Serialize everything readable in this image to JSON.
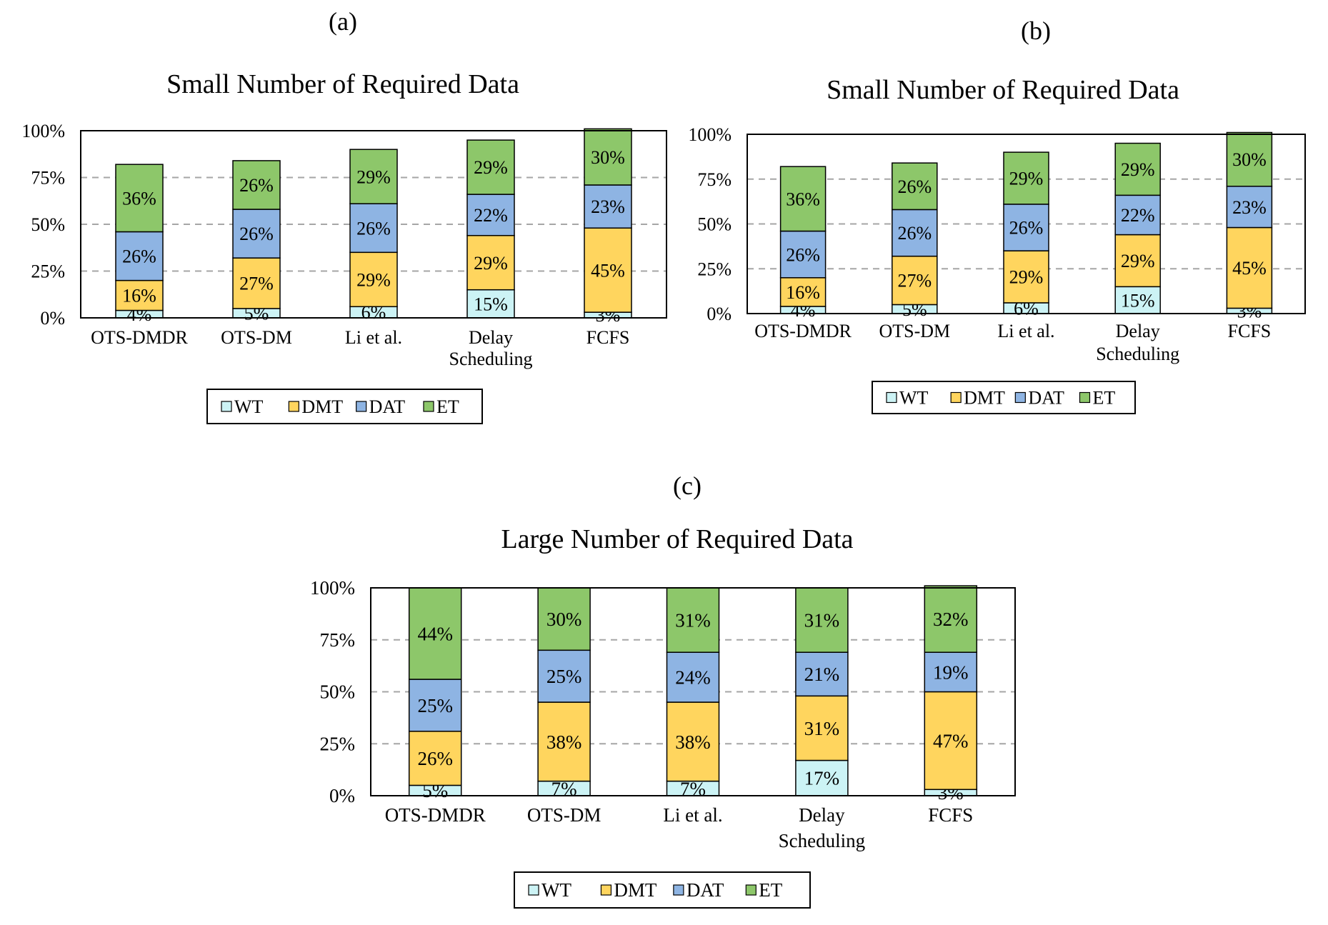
{
  "colors": {
    "WT": "#ccf3f5",
    "DMT": "#ffd55e",
    "DAT": "#8eb4e3",
    "ET": "#8dc76a",
    "grid": "#a6a6a6",
    "axis": "#000000"
  },
  "chart_data": [
    {
      "type": "bar",
      "stacked": true,
      "panel_label": "(a)",
      "title": "Small Number of Required Data",
      "categories": [
        "OTS-DMDR",
        "OTS-DM",
        "Li et al.",
        "Delay Scheduling",
        "FCFS"
      ],
      "category_lines": [
        [
          "OTS-DMDR"
        ],
        [
          "OTS-DM"
        ],
        [
          "Li et al."
        ],
        [
          "Delay",
          "Scheduling"
        ],
        [
          "FCFS"
        ]
      ],
      "series": [
        {
          "name": "WT",
          "values": [
            4,
            5,
            6,
            15,
            3
          ],
          "labels": [
            "4%",
            "5%",
            "6%",
            "15%",
            "3%"
          ]
        },
        {
          "name": "DMT",
          "values": [
            16,
            27,
            29,
            29,
            45
          ],
          "labels": [
            "16%",
            "27%",
            "29%",
            "29%",
            "45%"
          ]
        },
        {
          "name": "DAT",
          "values": [
            26,
            26,
            26,
            22,
            23
          ],
          "labels": [
            "26%",
            "26%",
            "26%",
            "22%",
            "23%"
          ]
        },
        {
          "name": "ET",
          "values": [
            36,
            26,
            29,
            29,
            30
          ],
          "labels": [
            "36%",
            "26%",
            "29%",
            "29%",
            "30%"
          ]
        }
      ],
      "yticks": [
        "0%",
        "25%",
        "50%",
        "75%",
        "100%"
      ],
      "ylim": [
        0,
        100
      ],
      "grid": true,
      "legend": [
        "WT",
        "DMT",
        "DAT",
        "ET"
      ],
      "legend_position": "bottom"
    },
    {
      "type": "bar",
      "stacked": true,
      "panel_label": "(b)",
      "title": "Small Number of Required Data",
      "categories": [
        "OTS-DMDR",
        "OTS-DM",
        "Li et al.",
        "Delay Scheduling",
        "FCFS"
      ],
      "category_lines": [
        [
          "OTS-DMDR"
        ],
        [
          "OTS-DM"
        ],
        [
          "Li et al."
        ],
        [
          "Delay",
          "Scheduling"
        ],
        [
          "FCFS"
        ]
      ],
      "series": [
        {
          "name": "WT",
          "values": [
            4,
            5,
            6,
            15,
            3
          ],
          "labels": [
            "4%",
            "5%",
            "6%",
            "15%",
            "3%"
          ]
        },
        {
          "name": "DMT",
          "values": [
            16,
            27,
            29,
            29,
            45
          ],
          "labels": [
            "16%",
            "27%",
            "29%",
            "29%",
            "45%"
          ]
        },
        {
          "name": "DAT",
          "values": [
            26,
            26,
            26,
            22,
            23
          ],
          "labels": [
            "26%",
            "26%",
            "26%",
            "22%",
            "23%"
          ]
        },
        {
          "name": "ET",
          "values": [
            36,
            26,
            29,
            29,
            30
          ],
          "labels": [
            "36%",
            "26%",
            "29%",
            "29%",
            "30%"
          ]
        }
      ],
      "yticks": [
        "0%",
        "25%",
        "50%",
        "75%",
        "100%"
      ],
      "ylim": [
        0,
        100
      ],
      "grid": true,
      "legend": [
        "WT",
        "DMT",
        "DAT",
        "ET"
      ],
      "legend_position": "bottom"
    },
    {
      "type": "bar",
      "stacked": true,
      "panel_label": "(c)",
      "title": "Large Number of Required Data",
      "categories": [
        "OTS-DMDR",
        "OTS-DM",
        "Li et al.",
        "Delay Scheduling",
        "FCFS"
      ],
      "category_lines": [
        [
          "OTS-DMDR"
        ],
        [
          "OTS-DM"
        ],
        [
          "Li et al."
        ],
        [
          "Delay",
          "Scheduling"
        ],
        [
          "FCFS"
        ]
      ],
      "series": [
        {
          "name": "WT",
          "values": [
            5,
            7,
            7,
            17,
            3
          ],
          "labels": [
            "5%",
            "7%",
            "7%",
            "17%",
            "3%"
          ]
        },
        {
          "name": "DMT",
          "values": [
            26,
            38,
            38,
            31,
            47
          ],
          "labels": [
            "26%",
            "38%",
            "38%",
            "31%",
            "47%"
          ]
        },
        {
          "name": "DAT",
          "values": [
            25,
            25,
            24,
            21,
            19
          ],
          "labels": [
            "25%",
            "25%",
            "24%",
            "21%",
            "19%"
          ]
        },
        {
          "name": "ET",
          "values": [
            44,
            30,
            31,
            31,
            32
          ],
          "labels": [
            "44%",
            "30%",
            "31%",
            "31%",
            "32%"
          ]
        }
      ],
      "yticks": [
        "0%",
        "25%",
        "50%",
        "75%",
        "100%"
      ],
      "ylim": [
        0,
        100
      ],
      "grid": true,
      "legend": [
        "WT",
        "DMT",
        "DAT",
        "ET"
      ],
      "legend_position": "bottom"
    }
  ]
}
